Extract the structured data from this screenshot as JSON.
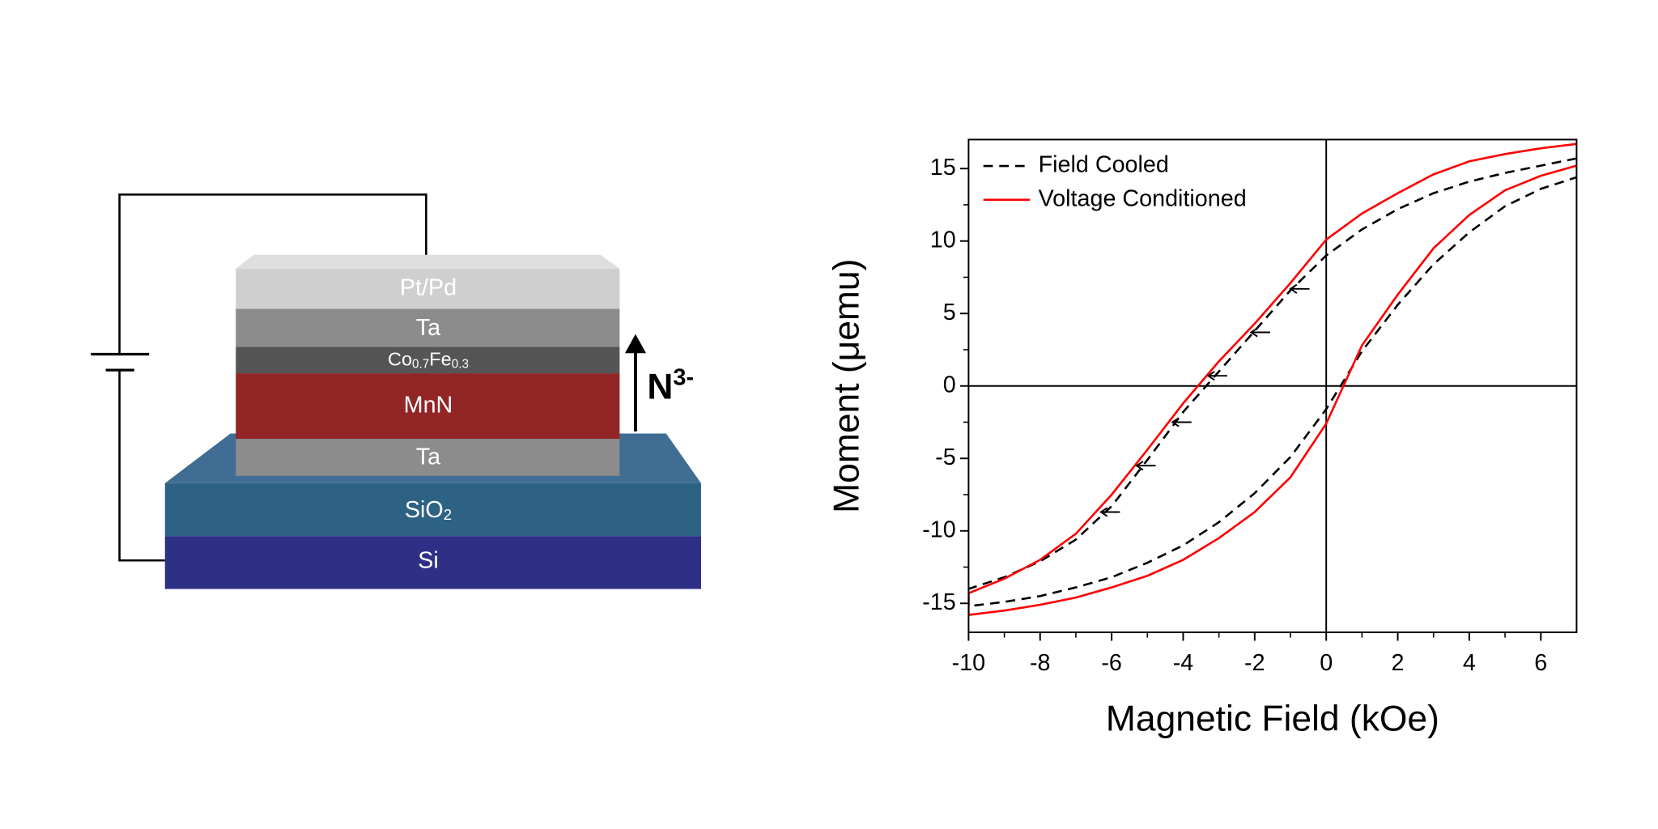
{
  "diagram": {
    "layers": [
      {
        "label": [
          "Pt/Pd"
        ]
      },
      {
        "label": [
          "Ta"
        ]
      },
      {
        "label": [
          "Co",
          {
            "sub": "0.7"
          },
          "Fe",
          {
            "sub": "0.3"
          }
        ]
      },
      {
        "label": [
          "MnN"
        ]
      },
      {
        "label": [
          "Ta"
        ]
      },
      {
        "label": [
          "SiO",
          {
            "sub": "2"
          }
        ]
      },
      {
        "label": [
          "Si"
        ]
      }
    ],
    "ion_label": [
      "N",
      {
        "sup": "3-"
      }
    ]
  },
  "chart_data": {
    "type": "line",
    "x_label": "Magnetic Field (kOe)",
    "y_label": "Moment (μemu)",
    "xlim": [
      -10,
      7
    ],
    "ylim": [
      -17,
      17
    ],
    "xticks": [
      -10,
      -8,
      -6,
      -4,
      -2,
      0,
      2,
      4,
      6
    ],
    "yticks": [
      -15,
      -10,
      -5,
      0,
      5,
      10,
      15
    ],
    "minor_ticks": true,
    "zero_lines": true,
    "legend": "upper-left",
    "series": [
      {
        "name": "Field Cooled",
        "color": "#000000",
        "dash": "dashed",
        "x": [
          7,
          6,
          5,
          4,
          3,
          2,
          1,
          0,
          -1,
          -2,
          -3,
          -4,
          -5,
          -6,
          -7,
          -8,
          -9,
          -10,
          -10,
          -9,
          -8,
          -7,
          -6,
          -5,
          -4,
          -3,
          -2,
          -1,
          0,
          1,
          2,
          3,
          4,
          5,
          6,
          7
        ],
        "values": [
          15.7,
          15.2,
          14.7,
          14.1,
          13.3,
          12.2,
          10.8,
          9.0,
          6.6,
          3.8,
          1.0,
          -1.8,
          -5.1,
          -8.3,
          -10.6,
          -12.1,
          -13.2,
          -14.0,
          -15.2,
          -14.9,
          -14.5,
          -13.9,
          -13.2,
          -12.2,
          -11.0,
          -9.4,
          -7.4,
          -4.9,
          -1.6,
          2.4,
          5.6,
          8.4,
          10.6,
          12.4,
          13.6,
          14.4
        ]
      },
      {
        "name": "Voltage Conditioned",
        "color": "#ff0000",
        "dash": "solid",
        "x": [
          7,
          6,
          5,
          4,
          3,
          2,
          1,
          0,
          -1,
          -2,
          -3,
          -4,
          -5,
          -6,
          -7,
          -8,
          -9,
          -10,
          -10,
          -9,
          -8,
          -7,
          -6,
          -5,
          -4,
          -3,
          -2,
          -1,
          0,
          1,
          2,
          3,
          4,
          5,
          6,
          7
        ],
        "values": [
          16.7,
          16.4,
          16.0,
          15.5,
          14.6,
          13.3,
          11.9,
          10.1,
          7.1,
          4.3,
          1.7,
          -1.2,
          -4.4,
          -7.5,
          -10.2,
          -12.0,
          -13.3,
          -14.3,
          -15.8,
          -15.5,
          -15.1,
          -14.6,
          -13.9,
          -13.1,
          -12.0,
          -10.5,
          -8.7,
          -6.3,
          -2.6,
          2.8,
          6.3,
          9.5,
          11.8,
          13.5,
          14.5,
          15.2
        ]
      }
    ],
    "direction_arrows": [
      {
        "x": -1.0,
        "y": 6.7
      },
      {
        "x": -2.1,
        "y": 3.7
      },
      {
        "x": -3.3,
        "y": 0.7
      },
      {
        "x": -4.3,
        "y": -2.5
      },
      {
        "x": -5.3,
        "y": -5.5
      },
      {
        "x": -6.3,
        "y": -8.7
      }
    ]
  }
}
